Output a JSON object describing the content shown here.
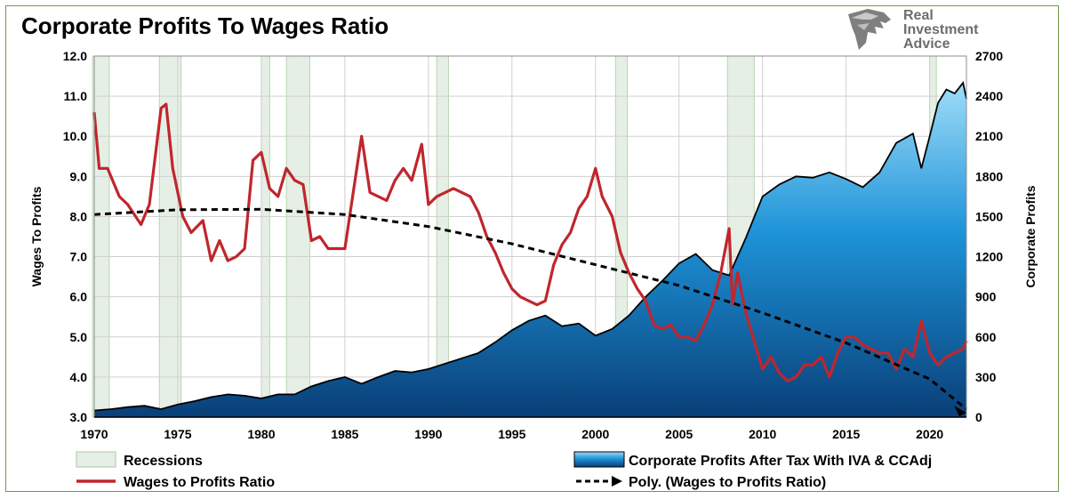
{
  "logo": {
    "brand_lines": [
      "Real",
      "Investment",
      "Advice"
    ]
  },
  "chart_data": {
    "type": "line",
    "title": "Corporate Profits To Wages Ratio",
    "ylabel_left": "Wages To Profits",
    "ylabel_right": "Corporate Profits",
    "x_ticks": [
      "1970",
      "1975",
      "1980",
      "1985",
      "1990",
      "1995",
      "2000",
      "2005",
      "2010",
      "2015",
      "2020"
    ],
    "xlim": [
      1970,
      2022.2
    ],
    "ylim_left": [
      3.0,
      12.0
    ],
    "ylim_right": [
      0,
      2700
    ],
    "y_ticks_left": [
      "3.0",
      "4.0",
      "5.0",
      "6.0",
      "7.0",
      "8.0",
      "9.0",
      "10.0",
      "11.0",
      "12.0"
    ],
    "y_ticks_right": [
      "0",
      "300",
      "600",
      "900",
      "1200",
      "1500",
      "1800",
      "2100",
      "2400",
      "2700"
    ],
    "grid": true,
    "legend_position": "bottom",
    "recessions": [
      [
        1969.9,
        1970.9
      ],
      [
        1973.9,
        1975.2
      ],
      [
        1980.0,
        1980.5
      ],
      [
        1981.5,
        1982.9
      ],
      [
        1990.5,
        1991.2
      ],
      [
        2001.2,
        2001.9
      ],
      [
        2007.9,
        2009.5
      ],
      [
        2020.0,
        2020.4
      ]
    ],
    "series": [
      {
        "name": "Corporate Profits After Tax With IVA & CCAdj",
        "type": "area",
        "axis": "right",
        "color_top": "#9fdcf9",
        "color_bottom": "#0a3f78",
        "points": [
          [
            1970,
            50
          ],
          [
            1971,
            60
          ],
          [
            1972,
            75
          ],
          [
            1973,
            85
          ],
          [
            1974,
            60
          ],
          [
            1975,
            95
          ],
          [
            1976,
            120
          ],
          [
            1977,
            150
          ],
          [
            1978,
            170
          ],
          [
            1979,
            160
          ],
          [
            1980,
            140
          ],
          [
            1981,
            170
          ],
          [
            1982,
            170
          ],
          [
            1983,
            230
          ],
          [
            1984,
            270
          ],
          [
            1985,
            300
          ],
          [
            1986,
            250
          ],
          [
            1987,
            300
          ],
          [
            1988,
            345
          ],
          [
            1989,
            335
          ],
          [
            1990,
            360
          ],
          [
            1991,
            400
          ],
          [
            1992,
            440
          ],
          [
            1993,
            480
          ],
          [
            1994,
            560
          ],
          [
            1995,
            650
          ],
          [
            1996,
            720
          ],
          [
            1997,
            760
          ],
          [
            1998,
            680
          ],
          [
            1999,
            700
          ],
          [
            2000,
            610
          ],
          [
            2001,
            660
          ],
          [
            2002,
            760
          ],
          [
            2003,
            900
          ],
          [
            2004,
            1020
          ],
          [
            2005,
            1150
          ],
          [
            2006,
            1220
          ],
          [
            2007,
            1100
          ],
          [
            2008,
            1060
          ],
          [
            2009,
            1340
          ],
          [
            2010,
            1650
          ],
          [
            2011,
            1740
          ],
          [
            2012,
            1800
          ],
          [
            2013,
            1790
          ],
          [
            2014,
            1830
          ],
          [
            2015,
            1780
          ],
          [
            2016,
            1720
          ],
          [
            2017,
            1830
          ],
          [
            2018,
            2050
          ],
          [
            2019,
            2120
          ],
          [
            2019.5,
            1860
          ],
          [
            2020,
            2100
          ],
          [
            2020.5,
            2350
          ],
          [
            2021,
            2450
          ],
          [
            2021.5,
            2420
          ],
          [
            2022,
            2500
          ],
          [
            2022.2,
            2380
          ]
        ]
      },
      {
        "name": "Wages to Profits Ratio",
        "type": "line",
        "axis": "left",
        "color": "#c0262d",
        "points": [
          [
            1970,
            10.6
          ],
          [
            1970.3,
            9.2
          ],
          [
            1970.8,
            9.2
          ],
          [
            1971.5,
            8.5
          ],
          [
            1972,
            8.3
          ],
          [
            1972.8,
            7.8
          ],
          [
            1973.3,
            8.3
          ],
          [
            1974,
            10.7
          ],
          [
            1974.3,
            10.8
          ],
          [
            1974.7,
            9.2
          ],
          [
            1975.3,
            8.0
          ],
          [
            1975.8,
            7.6
          ],
          [
            1976.5,
            7.9
          ],
          [
            1977,
            6.9
          ],
          [
            1977.5,
            7.4
          ],
          [
            1978,
            6.9
          ],
          [
            1978.5,
            7.0
          ],
          [
            1979,
            7.2
          ],
          [
            1979.5,
            9.4
          ],
          [
            1980,
            9.6
          ],
          [
            1980.5,
            8.7
          ],
          [
            1981,
            8.5
          ],
          [
            1981.5,
            9.2
          ],
          [
            1982,
            8.9
          ],
          [
            1982.5,
            8.8
          ],
          [
            1983,
            7.4
          ],
          [
            1983.5,
            7.5
          ],
          [
            1984,
            7.2
          ],
          [
            1985,
            7.2
          ],
          [
            1986,
            10.0
          ],
          [
            1986.5,
            8.6
          ],
          [
            1987,
            8.5
          ],
          [
            1987.5,
            8.4
          ],
          [
            1988,
            8.9
          ],
          [
            1988.5,
            9.2
          ],
          [
            1989,
            8.9
          ],
          [
            1989.6,
            9.8
          ],
          [
            1990,
            8.3
          ],
          [
            1990.5,
            8.5
          ],
          [
            1991,
            8.6
          ],
          [
            1991.5,
            8.7
          ],
          [
            1992,
            8.6
          ],
          [
            1992.5,
            8.5
          ],
          [
            1993,
            8.1
          ],
          [
            1993.5,
            7.5
          ],
          [
            1994,
            7.1
          ],
          [
            1994.5,
            6.6
          ],
          [
            1995,
            6.2
          ],
          [
            1995.5,
            6.0
          ],
          [
            1996,
            5.9
          ],
          [
            1996.5,
            5.8
          ],
          [
            1997,
            5.9
          ],
          [
            1997.5,
            6.8
          ],
          [
            1998,
            7.3
          ],
          [
            1998.5,
            7.6
          ],
          [
            1999,
            8.2
          ],
          [
            1999.5,
            8.5
          ],
          [
            2000,
            9.2
          ],
          [
            2000.4,
            8.5
          ],
          [
            2001,
            8.0
          ],
          [
            2001.5,
            7.1
          ],
          [
            2002,
            6.6
          ],
          [
            2002.5,
            6.2
          ],
          [
            2003,
            5.9
          ],
          [
            2003.5,
            5.3
          ],
          [
            2004,
            5.2
          ],
          [
            2004.5,
            5.3
          ],
          [
            2005,
            5.0
          ],
          [
            2005.5,
            5.0
          ],
          [
            2006,
            4.9
          ],
          [
            2006.5,
            5.3
          ],
          [
            2007,
            5.8
          ],
          [
            2007.5,
            6.6
          ],
          [
            2008,
            7.7
          ],
          [
            2008.2,
            5.8
          ],
          [
            2008.5,
            6.6
          ],
          [
            2009,
            5.6
          ],
          [
            2009.5,
            4.9
          ],
          [
            2010,
            4.2
          ],
          [
            2010.5,
            4.5
          ],
          [
            2011,
            4.1
          ],
          [
            2011.5,
            3.9
          ],
          [
            2012,
            4.0
          ],
          [
            2012.5,
            4.3
          ],
          [
            2013,
            4.3
          ],
          [
            2013.5,
            4.5
          ],
          [
            2014,
            4.0
          ],
          [
            2014.5,
            4.6
          ],
          [
            2015,
            5.0
          ],
          [
            2015.5,
            5.0
          ],
          [
            2016,
            4.8
          ],
          [
            2016.5,
            4.7
          ],
          [
            2017,
            4.6
          ],
          [
            2017.5,
            4.6
          ],
          [
            2018,
            4.2
          ],
          [
            2018.5,
            4.7
          ],
          [
            2019,
            4.5
          ],
          [
            2019.5,
            5.4
          ],
          [
            2020,
            4.6
          ],
          [
            2020.5,
            4.3
          ],
          [
            2021,
            4.5
          ],
          [
            2021.5,
            4.6
          ],
          [
            2022,
            4.7
          ],
          [
            2022.2,
            4.9
          ]
        ]
      },
      {
        "name": "Poly. (Wages to Profits Ratio)",
        "type": "line",
        "axis": "left",
        "color": "#000000",
        "dashed": true,
        "points": [
          [
            1970,
            8.05
          ],
          [
            1975,
            8.17
          ],
          [
            1980,
            8.18
          ],
          [
            1985,
            8.05
          ],
          [
            1990,
            7.75
          ],
          [
            1995,
            7.32
          ],
          [
            2000,
            6.8
          ],
          [
            2005,
            6.28
          ],
          [
            2010,
            5.6
          ],
          [
            2015,
            4.85
          ],
          [
            2020,
            3.95
          ],
          [
            2022.2,
            3.2
          ]
        ]
      },
      {
        "name": "Recessions",
        "type": "shaded",
        "color": "#e6efe6"
      }
    ]
  }
}
